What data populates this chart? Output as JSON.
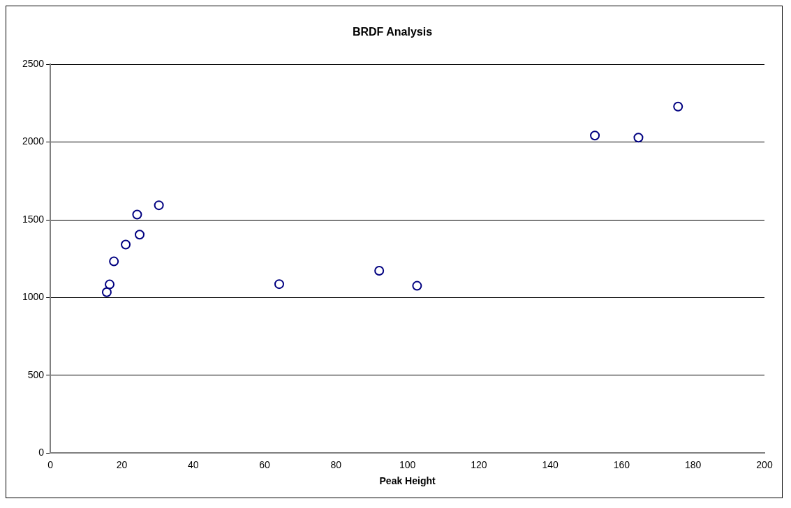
{
  "chart_data": {
    "type": "scatter",
    "title": "BRDF Analysis",
    "xlabel": "Peak Height",
    "x": [
      15.8,
      16.6,
      17.8,
      21.1,
      25.0,
      24.3,
      30.4,
      64.1,
      92.1,
      102.7,
      152.5,
      164.7,
      175.8
    ],
    "values": [
      1035,
      1085,
      1233,
      1341,
      1405,
      1534,
      1594,
      1087,
      1173,
      1076,
      2042,
      2029,
      2228
    ],
    "color": "#000080",
    "marker": "circle",
    "xlim": [
      0,
      200
    ],
    "xticks": [
      0,
      20,
      40,
      60,
      80,
      100,
      120,
      140,
      160,
      180,
      200
    ],
    "ylim": [
      0,
      2500
    ],
    "yticks": [
      0,
      500,
      1000,
      1500,
      2000,
      2500
    ],
    "grid": "y",
    "legend": false
  }
}
